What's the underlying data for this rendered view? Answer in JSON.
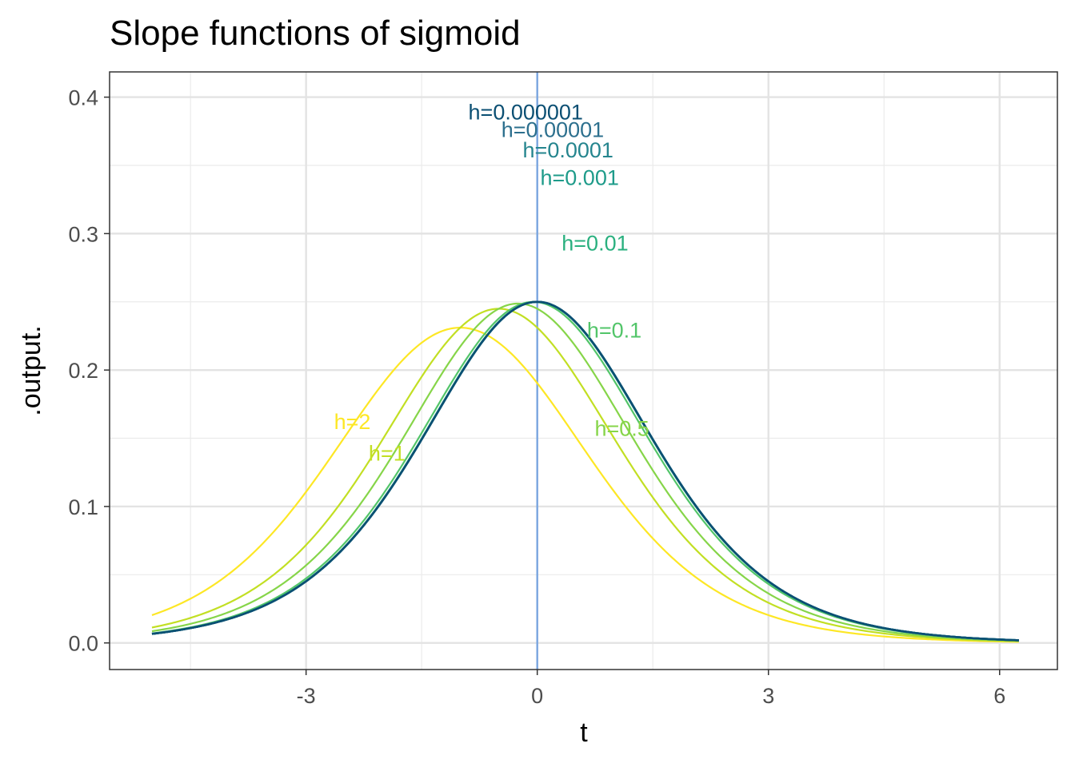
{
  "chart_data": {
    "type": "line",
    "title": "Slope functions of sigmoid",
    "xlabel": "t",
    "ylabel": ".output.",
    "xlim": [
      -5.55,
      6.75
    ],
    "ylim": [
      -0.0195,
      0.4185
    ],
    "x_ticks": [
      -3,
      0,
      3,
      6
    ],
    "x_tick_labels": [
      "-3",
      "0",
      "3",
      "6"
    ],
    "y_ticks": [
      0.0,
      0.1,
      0.2,
      0.3,
      0.4
    ],
    "y_tick_labels": [
      "0.0",
      "0.1",
      "0.2",
      "0.3",
      "0.4"
    ],
    "x_minor_ticks": [
      -4.5,
      -1.5,
      1.5,
      4.5
    ],
    "y_minor_ticks": [
      0.05,
      0.15,
      0.25,
      0.35
    ],
    "x_range": [
      -5,
      6.25
    ],
    "grid": true,
    "legend": "none",
    "reference_line": {
      "x": 0,
      "color": "#7aa6e0"
    },
    "series": [
      {
        "h": 2,
        "color": "#fde725",
        "label": "h=2",
        "label_pos": [
          -2.4,
          0.162
        ]
      },
      {
        "h": 1,
        "color": "#c2df23",
        "label": "h=1",
        "label_pos": [
          -1.95,
          0.139
        ]
      },
      {
        "h": 0.5,
        "color": "#86d549",
        "label": "h=0.5",
        "label_pos": [
          1.1,
          0.157
        ]
      },
      {
        "h": 0.1,
        "color": "#52c569",
        "label": "h=0.1",
        "label_pos": [
          1.0,
          0.229
        ]
      },
      {
        "h": 0.01,
        "color": "#2ab07f",
        "label": "h=0.01",
        "label_pos": [
          0.75,
          0.293
        ]
      },
      {
        "h": 0.001,
        "color": "#1e9b8a",
        "label": "h=0.001",
        "label_pos": [
          0.55,
          0.341
        ]
      },
      {
        "h": 0.0001,
        "color": "#25858e",
        "label": "h=0.0001",
        "label_pos": [
          0.4,
          0.361
        ]
      },
      {
        "h": 1e-05,
        "color": "#2d708e",
        "label": "h=0.00001",
        "label_pos": [
          0.2,
          0.376
        ]
      },
      {
        "h": 1e-06,
        "color": "#0b4f73",
        "label": "h=0.000001",
        "label_pos": [
          -0.15,
          0.389
        ]
      }
    ]
  }
}
